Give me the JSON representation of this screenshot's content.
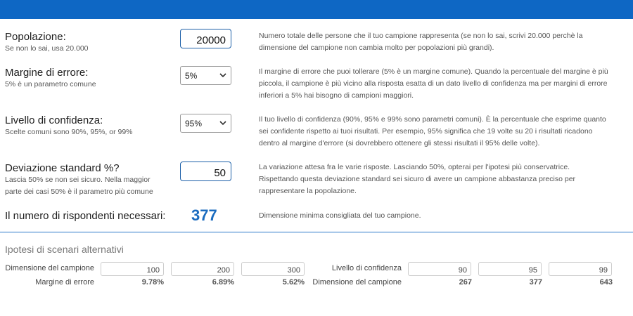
{
  "population": {
    "label": "Popolazione:",
    "hint": "Se non lo sai, usa 20.000",
    "value": "20000",
    "description": "Numero totale delle persone che il tuo campione rappresenta (se non lo sai, scrivi 20.000 perchè la dimensione del campione non cambia molto per popolazioni più grandi)."
  },
  "margin": {
    "label": "Margine di errore:",
    "hint": "5% è un parametro comune",
    "selected": "5%",
    "description": "Il margine di errore che puoi tollerare (5% è un margine comune). Quando la percentuale del margine è più piccola, il campione è più vicino alla risposta esatta di un dato livello di confidenza ma per margini di errore inferiori a 5% hai bisogno di campioni maggiori."
  },
  "confidence": {
    "label": "Livello di confidenza:",
    "hint": "Scelte comuni sono 90%, 95%, or 99%",
    "selected": "95%",
    "description": "Il tuo livello di confidenza (90%, 95% e 99% sono parametri comuni). È la percentuale che esprime quanto sei confidente rispetto ai tuoi risultati. Per esempio, 95% significa che 19 volte su 20 i risultati ricadono dentro al margine d'errore (si dovrebbero ottenere gli stessi risultati il 95% delle volte)."
  },
  "std_dev": {
    "label": "Deviazione standard %?",
    "hint": "Lascia 50% se non sei sicuro. Nella maggior parte dei casi 50% è il parametro più comune",
    "value": "50",
    "description": "La variazione attesa fra le varie risposte. Lasciando 50%, opterai per l'ipotesi più conservatrice. Rispettando questa deviazione standard sei sicuro di avere un campione abbastanza preciso per rappresentare la popolazione."
  },
  "result": {
    "label": "Il numero di rispondenti necessari:",
    "value": "377",
    "description": "Dimensione minima consigliata del tuo campione."
  },
  "alternatives": {
    "title": "Ipotesi di scenari alternativi",
    "left": {
      "input_label": "Dimensione del campione",
      "output_label": "Margine di errore",
      "inputs": [
        "100",
        "200",
        "300"
      ],
      "outputs": [
        "9.78%",
        "6.89%",
        "5.62%"
      ]
    },
    "right": {
      "input_label": "Livello di confidenza",
      "output_label": "Dimensione del campione",
      "inputs": [
        "90",
        "95",
        "99"
      ],
      "outputs": [
        "267",
        "377",
        "643"
      ]
    }
  },
  "colors": {
    "header": "#0e67c4",
    "accent": "#1a6bbf"
  }
}
